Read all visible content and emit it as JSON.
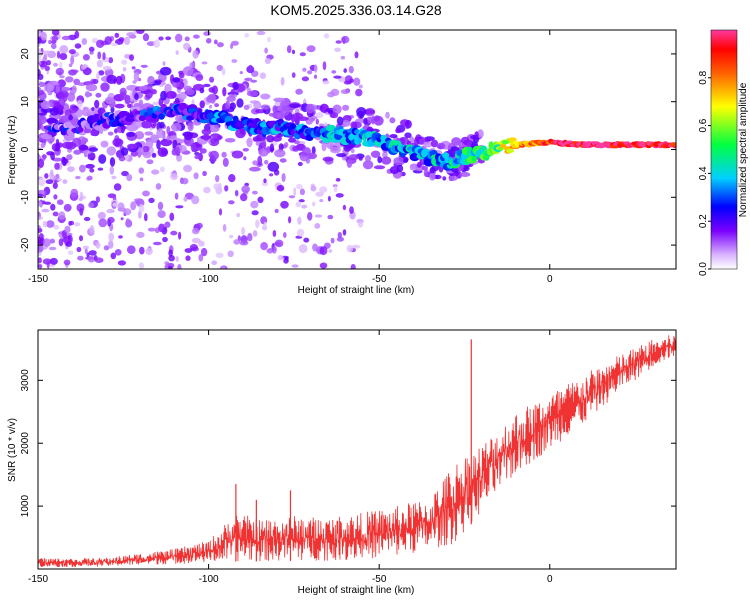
{
  "title": "KOM5.2025.336.03.14.G28",
  "chart_data": [
    {
      "type": "heatmap",
      "name": "spectrogram",
      "xlabel": "Height of straight line (km)",
      "ylabel": "Frequency (Hz)",
      "xlim": [
        -150,
        37
      ],
      "ylim": [
        -25,
        25
      ],
      "xticks": [
        -150,
        -100,
        -50,
        0
      ],
      "yticks": [
        -20,
        -10,
        0,
        10,
        20
      ],
      "ridge": [
        {
          "x": -150,
          "y": 6
        },
        {
          "x": -140,
          "y": 4.5
        },
        {
          "x": -130,
          "y": 6
        },
        {
          "x": -120,
          "y": 7.5
        },
        {
          "x": -110,
          "y": 8
        },
        {
          "x": -100,
          "y": 7
        },
        {
          "x": -90,
          "y": 5
        },
        {
          "x": -80,
          "y": 4.5
        },
        {
          "x": -70,
          "y": 3.5
        },
        {
          "x": -60,
          "y": 3
        },
        {
          "x": -50,
          "y": 2
        },
        {
          "x": -40,
          "y": -1
        },
        {
          "x": -30,
          "y": -2.5
        },
        {
          "x": -20,
          "y": -0.5
        },
        {
          "x": -10,
          "y": 1
        },
        {
          "x": 0,
          "y": 1.5
        },
        {
          "x": 10,
          "y": 1
        },
        {
          "x": 20,
          "y": 1
        },
        {
          "x": 37,
          "y": 1
        }
      ],
      "colorbar": {
        "label": "Normalized spectral amplitude",
        "range": [
          0,
          1
        ],
        "ticks": [
          "0.0",
          "0.2",
          "0.4",
          "0.6",
          "0.8"
        ],
        "ticks_num": [
          0,
          0.2,
          0.4,
          0.6,
          0.8
        ]
      }
    },
    {
      "type": "line",
      "name": "snr",
      "xlabel": "Height of straight line (km)",
      "ylabel": "SNR (10 * v/v)",
      "xlim": [
        -150,
        37
      ],
      "ylim": [
        0,
        3800
      ],
      "xticks": [
        -150,
        -100,
        -50,
        0
      ],
      "yticks": [
        1000,
        2000,
        3000
      ],
      "color": "#f03232",
      "envelope": [
        {
          "x": -150,
          "lo": 30,
          "hi": 180
        },
        {
          "x": -140,
          "lo": 30,
          "hi": 170
        },
        {
          "x": -130,
          "lo": 40,
          "hi": 180
        },
        {
          "x": -120,
          "lo": 60,
          "hi": 250
        },
        {
          "x": -110,
          "lo": 80,
          "hi": 320
        },
        {
          "x": -100,
          "lo": 100,
          "hi": 450
        },
        {
          "x": -92,
          "lo": 120,
          "hi": 900
        },
        {
          "x": -85,
          "lo": 120,
          "hi": 800
        },
        {
          "x": -75,
          "lo": 130,
          "hi": 850
        },
        {
          "x": -65,
          "lo": 130,
          "hi": 820
        },
        {
          "x": -55,
          "lo": 150,
          "hi": 900
        },
        {
          "x": -45,
          "lo": 200,
          "hi": 1000
        },
        {
          "x": -35,
          "lo": 300,
          "hi": 1150
        },
        {
          "x": -28,
          "lo": 400,
          "hi": 1700
        },
        {
          "x": -20,
          "lo": 900,
          "hi": 2000
        },
        {
          "x": -10,
          "lo": 1500,
          "hi": 2500
        },
        {
          "x": 0,
          "lo": 1900,
          "hi": 2800
        },
        {
          "x": 10,
          "lo": 2300,
          "hi": 3100
        },
        {
          "x": 20,
          "lo": 2800,
          "hi": 3400
        },
        {
          "x": 30,
          "lo": 3200,
          "hi": 3650
        },
        {
          "x": 37,
          "lo": 3400,
          "hi": 3750
        }
      ],
      "spikes": [
        {
          "x": -23,
          "y": 3650
        },
        {
          "x": -92,
          "y": 1350
        },
        {
          "x": -86,
          "y": 1100
        },
        {
          "x": -76,
          "y": 1250
        }
      ]
    }
  ]
}
